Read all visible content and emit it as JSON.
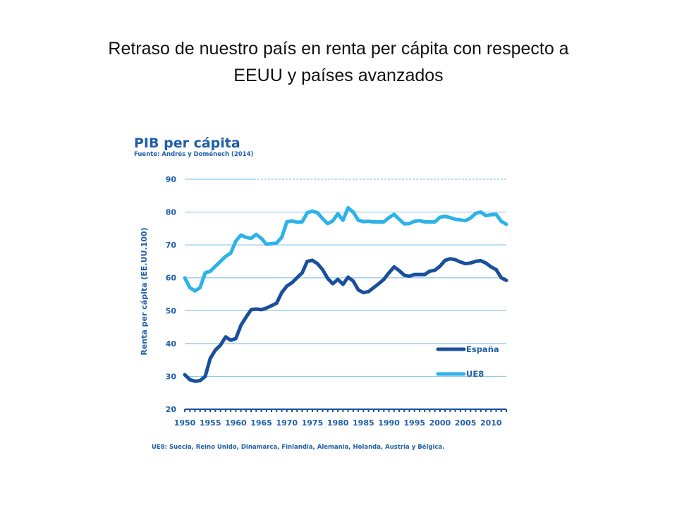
{
  "slide": {
    "title_line1": "Retraso de nuestro país en renta per cápita con respecto a",
    "title_line2": "EEUU y países avanzados"
  },
  "chart_data": {
    "type": "line",
    "title": "PIB per cápita",
    "subtitle": "Fuente: Andrés y Doménech (2014)",
    "ylabel": "Renta per cápita (EE.UU.100)",
    "xlabel": "",
    "ylim": [
      20,
      90
    ],
    "yticks": [
      20,
      30,
      40,
      50,
      60,
      70,
      80,
      90
    ],
    "xlim": [
      1950,
      2013
    ],
    "xticks": [
      1950,
      1955,
      1960,
      1965,
      1970,
      1975,
      1980,
      1985,
      1990,
      1995,
      2000,
      2005,
      2010
    ],
    "grid": "horizontal",
    "legend_position": "bottom-right",
    "footnote": "UE8: Suecia, Reino Unido, Dinamarca, Finlandia, Alemania, Holanda, Austria y Bélgica.",
    "colors": {
      "axis_text": "#1f5fa8",
      "grid": "#8ec9ec",
      "title": "#1f5fa8"
    },
    "series": [
      {
        "name": "España",
        "color": "#1a4f9c",
        "x": [
          1950,
          1951,
          1952,
          1953,
          1954,
          1955,
          1956,
          1957,
          1958,
          1959,
          1960,
          1961,
          1962,
          1963,
          1964,
          1965,
          1966,
          1967,
          1968,
          1969,
          1970,
          1971,
          1972,
          1973,
          1974,
          1975,
          1976,
          1977,
          1978,
          1979,
          1980,
          1981,
          1982,
          1983,
          1984,
          1985,
          1986,
          1987,
          1988,
          1989,
          1990,
          1991,
          1992,
          1993,
          1994,
          1995,
          1996,
          1997,
          1998,
          1999,
          2000,
          2001,
          2002,
          2003,
          2004,
          2005,
          2006,
          2007,
          2008,
          2009,
          2010,
          2011,
          2012,
          2013
        ],
        "values": [
          30.5,
          29,
          28.5,
          28.7,
          30,
          35.5,
          38,
          39.5,
          42,
          41,
          41.5,
          45.5,
          48,
          50.3,
          50.5,
          50.3,
          50.8,
          51.5,
          52.3,
          55.5,
          57.5,
          58.5,
          60,
          61.5,
          65,
          65.3,
          64.3,
          62.5,
          59.8,
          58.2,
          59.5,
          58,
          60.2,
          59,
          56.3,
          55.5,
          55.8,
          57,
          58.2,
          59.5,
          61.5,
          63.3,
          62.2,
          60.8,
          60.5,
          61,
          61,
          61,
          62,
          62.3,
          63.5,
          65.3,
          65.8,
          65.5,
          64.8,
          64.3,
          64.5,
          65,
          65.2,
          64.5,
          63.3,
          62.5,
          60,
          59.2
        ]
      },
      {
        "name": "UE8",
        "color": "#2db2ea",
        "x": [
          1950,
          1951,
          1952,
          1953,
          1954,
          1955,
          1956,
          1957,
          1958,
          1959,
          1960,
          1961,
          1962,
          1963,
          1964,
          1965,
          1966,
          1967,
          1968,
          1969,
          1970,
          1971,
          1972,
          1973,
          1974,
          1975,
          1976,
          1977,
          1978,
          1979,
          1980,
          1981,
          1982,
          1983,
          1984,
          1985,
          1986,
          1987,
          1988,
          1989,
          1990,
          1991,
          1992,
          1993,
          1994,
          1995,
          1996,
          1997,
          1998,
          1999,
          2000,
          2001,
          2002,
          2003,
          2004,
          2005,
          2006,
          2007,
          2008,
          2009,
          2010,
          2011,
          2012,
          2013
        ],
        "values": [
          60,
          57,
          56,
          57,
          61.5,
          62,
          63.5,
          65,
          66.5,
          67.5,
          71.2,
          73,
          72.3,
          72,
          73.2,
          72,
          70.2,
          70.4,
          70.6,
          72.3,
          77,
          77.3,
          76.9,
          77,
          79.8,
          80.3,
          79.8,
          78,
          76.5,
          77.3,
          79.5,
          77.5,
          81.3,
          80,
          77.5,
          77.1,
          77.2,
          77,
          77,
          77,
          78.3,
          79.3,
          77.8,
          76.4,
          76.5,
          77.2,
          77.4,
          77,
          77,
          77,
          78.4,
          78.7,
          78.3,
          77.8,
          77.6,
          77.4,
          78.2,
          79.6,
          80,
          78.9,
          79.2,
          79.3,
          77.2,
          76.3
        ]
      }
    ]
  }
}
